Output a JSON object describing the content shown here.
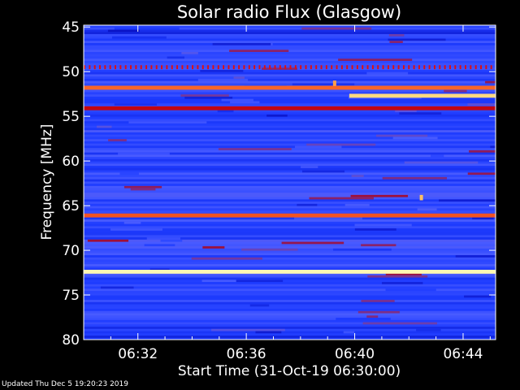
{
  "chart_data": {
    "type": "heatmap",
    "title": "Solar radio Flux (Glasgow)",
    "xlabel": "Start Time (31-Oct-19 06:30:00)",
    "ylabel": "Frequency [MHz]",
    "x_ticks": [
      "06:32",
      "06:36",
      "06:40",
      "06:44"
    ],
    "x_tick_minutes": [
      2,
      6,
      10,
      14
    ],
    "xlim_minutes": [
      0,
      15.2
    ],
    "y_ticks": [
      45,
      50,
      55,
      60,
      65,
      70,
      75,
      80
    ],
    "ylim": [
      44.8,
      80
    ],
    "y_inverted": true,
    "colormap": [
      "#000060",
      "#0a14c8",
      "#1e3cff",
      "#4a5cff",
      "#b00010",
      "#e01010",
      "#ff8030",
      "#ffd070",
      "#ffffc0"
    ],
    "features": [
      {
        "kind": "band",
        "freq": 49.5,
        "value": 0.62,
        "x_start": 0,
        "x_end": 15.2,
        "note": "dotted red interference line"
      },
      {
        "kind": "band",
        "freq": 51.8,
        "value": 0.72,
        "x_start": 0,
        "x_end": 15.2
      },
      {
        "kind": "band",
        "freq": 52.7,
        "value": 0.9,
        "x_start": 9.8,
        "x_end": 15.2
      },
      {
        "kind": "band",
        "freq": 54.1,
        "value": 0.55,
        "x_start": 0,
        "x_end": 15.2
      },
      {
        "kind": "band",
        "freq": 66.1,
        "value": 0.7,
        "x_start": 0,
        "x_end": 15.2
      },
      {
        "kind": "band",
        "freq": 72.4,
        "value": 0.98,
        "x_start": 0,
        "x_end": 15.2
      },
      {
        "kind": "spot",
        "freq": 51.3,
        "minute": 9.2,
        "value": 0.8
      },
      {
        "kind": "spot",
        "freq": 64.1,
        "minute": 12.4,
        "value": 0.85
      }
    ]
  },
  "footer": "Updated Thu Dec  5 19:20:23 2019"
}
